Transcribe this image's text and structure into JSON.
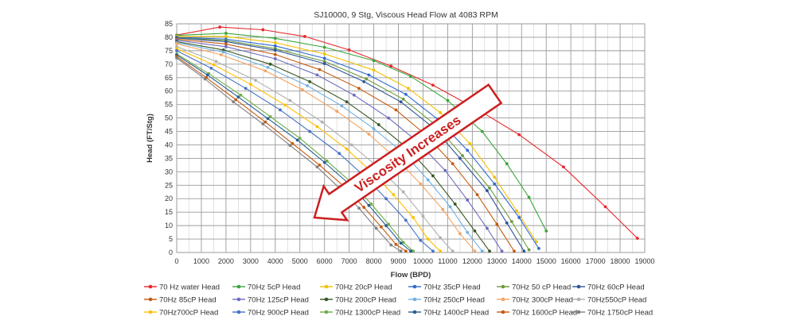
{
  "chart_data": {
    "type": "line",
    "title": "SJ10000, 9 Stg, Viscous Head Flow at 4083 RPM",
    "xlabel": "Flow (BPD)",
    "ylabel": "Head (FT/Stg)",
    "xlim": [
      0,
      19000
    ],
    "ylim": [
      0,
      85
    ],
    "x_ticks": [
      "0",
      "1000",
      "2000",
      "3000",
      "4000",
      "5000",
      "6000",
      "7000",
      "8000",
      "9000",
      "10000",
      "11000",
      "12000",
      "13000",
      "14000",
      "15000",
      "16000",
      "17000",
      "18000",
      "19000"
    ],
    "y_ticks": [
      "0",
      "5",
      "10",
      "15",
      "20",
      "25",
      "30",
      "35",
      "40",
      "45",
      "50",
      "55",
      "60",
      "65",
      "70",
      "75",
      "80",
      "85"
    ],
    "grid": true,
    "legend_position": "bottom",
    "annotation": {
      "text": "Viscosity Increases",
      "color": "#cc1f1f"
    },
    "series": [
      {
        "name": "70 Hz water Head",
        "color": "#e8262a",
        "points": [
          [
            0,
            80.8
          ],
          [
            1750,
            83.8
          ],
          [
            3500,
            82.8
          ],
          [
            5200,
            80.3
          ],
          [
            7000,
            75.3
          ],
          [
            8700,
            69.3
          ],
          [
            10400,
            62.2
          ],
          [
            12200,
            53.2
          ],
          [
            13900,
            43.8
          ],
          [
            15700,
            31.8
          ],
          [
            17400,
            17.0
          ],
          [
            18700,
            5.3
          ]
        ]
      },
      {
        "name": "70Hz 5cP Head",
        "color": "#3aa63a",
        "points": [
          [
            0,
            80.7
          ],
          [
            2000,
            81.5
          ],
          [
            4000,
            79.6
          ],
          [
            6000,
            76.3
          ],
          [
            8000,
            71.3
          ],
          [
            9500,
            65.5
          ],
          [
            11000,
            56.5
          ],
          [
            12400,
            45.0
          ],
          [
            13400,
            33.0
          ],
          [
            14300,
            20.5
          ],
          [
            15000,
            8.0
          ]
        ]
      },
      {
        "name": "70Hz 20cP Head",
        "color": "#f2c200",
        "points": [
          [
            0,
            80.3
          ],
          [
            2000,
            80.3
          ],
          [
            4000,
            78.0
          ],
          [
            6000,
            73.8
          ],
          [
            8000,
            67.8
          ],
          [
            9400,
            61.0
          ],
          [
            10700,
            52.0
          ],
          [
            11900,
            40.5
          ],
          [
            12900,
            28.0
          ],
          [
            13800,
            15.5
          ],
          [
            14600,
            4.0
          ]
        ]
      },
      {
        "name": "70Hz 35cP Head",
        "color": "#2f6bd0",
        "points": [
          [
            0,
            80.0
          ],
          [
            2000,
            79.3
          ],
          [
            4000,
            76.8
          ],
          [
            6000,
            72.2
          ],
          [
            7800,
            66.0
          ],
          [
            9300,
            58.8
          ],
          [
            10600,
            49.5
          ],
          [
            11800,
            38.0
          ],
          [
            12900,
            25.5
          ],
          [
            13900,
            13.0
          ],
          [
            14700,
            1.5
          ]
        ]
      },
      {
        "name": "70Hz 50 cP Head",
        "color": "#6d9a3c",
        "points": [
          [
            0,
            79.8
          ],
          [
            2000,
            78.8
          ],
          [
            4000,
            75.8
          ],
          [
            6000,
            71.0
          ],
          [
            7700,
            64.5
          ],
          [
            9200,
            57.0
          ],
          [
            10500,
            47.5
          ],
          [
            11600,
            36.0
          ],
          [
            12700,
            24.0
          ],
          [
            13600,
            11.5
          ],
          [
            14300,
            1.0
          ]
        ]
      },
      {
        "name": "70Hz 60cP Head",
        "color": "#2f5597",
        "points": [
          [
            0,
            79.7
          ],
          [
            2000,
            78.4
          ],
          [
            4000,
            75.2
          ],
          [
            6000,
            70.2
          ],
          [
            7600,
            63.5
          ],
          [
            9100,
            56.0
          ],
          [
            10400,
            46.5
          ],
          [
            11500,
            35.0
          ],
          [
            12600,
            23.0
          ],
          [
            13400,
            11.0
          ],
          [
            14100,
            0.5
          ]
        ]
      },
      {
        "name": "70Hz 85cP Head",
        "color": "#c55a11",
        "points": [
          [
            0,
            79.3
          ],
          [
            2000,
            77.5
          ],
          [
            4000,
            73.6
          ],
          [
            5800,
            68.0
          ],
          [
            7400,
            61.0
          ],
          [
            8900,
            53.0
          ],
          [
            10100,
            43.8
          ],
          [
            11200,
            33.0
          ],
          [
            12200,
            21.5
          ],
          [
            13000,
            10.5
          ],
          [
            13700,
            0.5
          ]
        ]
      },
      {
        "name": "70Hz 125cP Head",
        "color": "#6b6bbf",
        "points": [
          [
            0,
            78.9
          ],
          [
            2000,
            76.5
          ],
          [
            4000,
            72.0
          ],
          [
            5700,
            66.0
          ],
          [
            7200,
            58.5
          ],
          [
            8600,
            50.0
          ],
          [
            9800,
            41.0
          ],
          [
            10900,
            30.5
          ],
          [
            11800,
            19.5
          ],
          [
            12600,
            9.0
          ],
          [
            13200,
            0.5
          ]
        ]
      },
      {
        "name": "70Hz 200cP Head",
        "color": "#385723",
        "points": [
          [
            0,
            78.4
          ],
          [
            1900,
            75.3
          ],
          [
            3800,
            70.0
          ],
          [
            5400,
            63.5
          ],
          [
            6900,
            56.0
          ],
          [
            8200,
            47.5
          ],
          [
            9400,
            38.5
          ],
          [
            10400,
            28.5
          ],
          [
            11300,
            18.0
          ],
          [
            12100,
            8.0
          ],
          [
            12700,
            0.5
          ]
        ]
      },
      {
        "name": "70Hz 250cP Head",
        "color": "#6fb1e3",
        "points": [
          [
            0,
            78.0
          ],
          [
            1900,
            74.5
          ],
          [
            3700,
            68.8
          ],
          [
            5300,
            62.0
          ],
          [
            6700,
            54.5
          ],
          [
            8000,
            46.0
          ],
          [
            9200,
            37.0
          ],
          [
            10200,
            27.0
          ],
          [
            11100,
            17.0
          ],
          [
            11800,
            7.5
          ],
          [
            12400,
            0.5
          ]
        ]
      },
      {
        "name": "70Hz 300cP Head",
        "color": "#f4a460",
        "points": [
          [
            0,
            77.6
          ],
          [
            1800,
            73.5
          ],
          [
            3600,
            67.5
          ],
          [
            5100,
            60.5
          ],
          [
            6500,
            52.5
          ],
          [
            7800,
            44.0
          ],
          [
            8900,
            35.0
          ],
          [
            9900,
            25.5
          ],
          [
            10800,
            16.0
          ],
          [
            11500,
            7.0
          ],
          [
            12100,
            0.5
          ]
        ]
      },
      {
        "name": "70Hz550cP Head",
        "color": "#b0b0b0",
        "points": [
          [
            0,
            76.5
          ],
          [
            1600,
            71.0
          ],
          [
            3200,
            64.0
          ],
          [
            4600,
            56.5
          ],
          [
            5900,
            48.5
          ],
          [
            7100,
            40.0
          ],
          [
            8200,
            31.5
          ],
          [
            9200,
            22.5
          ],
          [
            10000,
            13.5
          ],
          [
            10700,
            5.5
          ],
          [
            11200,
            0.5
          ]
        ]
      },
      {
        "name": "70Hz700cP Head",
        "color": "#ffc000",
        "points": [
          [
            0,
            75.8
          ],
          [
            1500,
            69.8
          ],
          [
            3000,
            62.5
          ],
          [
            4400,
            54.8
          ],
          [
            5700,
            46.8
          ],
          [
            6900,
            38.5
          ],
          [
            7900,
            30.0
          ],
          [
            8800,
            21.5
          ],
          [
            9600,
            13.0
          ],
          [
            10200,
            5.0
          ],
          [
            10700,
            0.5
          ]
        ]
      },
      {
        "name": "70Hz 900cP Head",
        "color": "#4472c4",
        "points": [
          [
            0,
            75.0
          ],
          [
            1400,
            68.5
          ],
          [
            2800,
            61.0
          ],
          [
            4200,
            53.0
          ],
          [
            5400,
            45.0
          ],
          [
            6600,
            36.8
          ],
          [
            7600,
            28.5
          ],
          [
            8500,
            20.0
          ],
          [
            9300,
            12.0
          ],
          [
            9900,
            4.5
          ],
          [
            10400,
            0.5
          ]
        ]
      },
      {
        "name": "70Hz 1300cP Head",
        "color": "#70ad47",
        "points": [
          [
            0,
            73.8
          ],
          [
            1300,
            66.5
          ],
          [
            2600,
            58.5
          ],
          [
            3800,
            50.5
          ],
          [
            5000,
            42.5
          ],
          [
            6100,
            34.0
          ],
          [
            7100,
            26.0
          ],
          [
            7900,
            18.0
          ],
          [
            8600,
            10.5
          ],
          [
            9200,
            3.8
          ],
          [
            9600,
            0.5
          ]
        ]
      },
      {
        "name": "70Hz 1400cP Head",
        "color": "#255e91",
        "points": [
          [
            0,
            73.4
          ],
          [
            1250,
            66.0
          ],
          [
            2500,
            57.8
          ],
          [
            3700,
            49.8
          ],
          [
            4900,
            41.8
          ],
          [
            6000,
            33.5
          ],
          [
            7000,
            25.5
          ],
          [
            7800,
            17.5
          ],
          [
            8500,
            10.0
          ],
          [
            9100,
            3.5
          ],
          [
            9500,
            0.5
          ]
        ]
      },
      {
        "name": "70Hz 1600cP Head",
        "color": "#c55a11",
        "points": [
          [
            0,
            72.8
          ],
          [
            1200,
            65.0
          ],
          [
            2400,
            56.8
          ],
          [
            3600,
            48.5
          ],
          [
            4700,
            40.5
          ],
          [
            5800,
            32.5
          ],
          [
            6800,
            24.5
          ],
          [
            7600,
            16.8
          ],
          [
            8300,
            9.5
          ],
          [
            8900,
            3.0
          ],
          [
            9300,
            0.5
          ]
        ]
      },
      {
        "name": "70Hz 1750cP Head",
        "color": "#808080",
        "points": [
          [
            0,
            72.3
          ],
          [
            1150,
            64.5
          ],
          [
            2300,
            56.0
          ],
          [
            3500,
            47.8
          ],
          [
            4600,
            39.8
          ],
          [
            5700,
            31.8
          ],
          [
            6600,
            24.0
          ],
          [
            7400,
            16.5
          ],
          [
            8100,
            9.0
          ],
          [
            8700,
            2.8
          ],
          [
            9100,
            0.5
          ]
        ]
      }
    ]
  }
}
